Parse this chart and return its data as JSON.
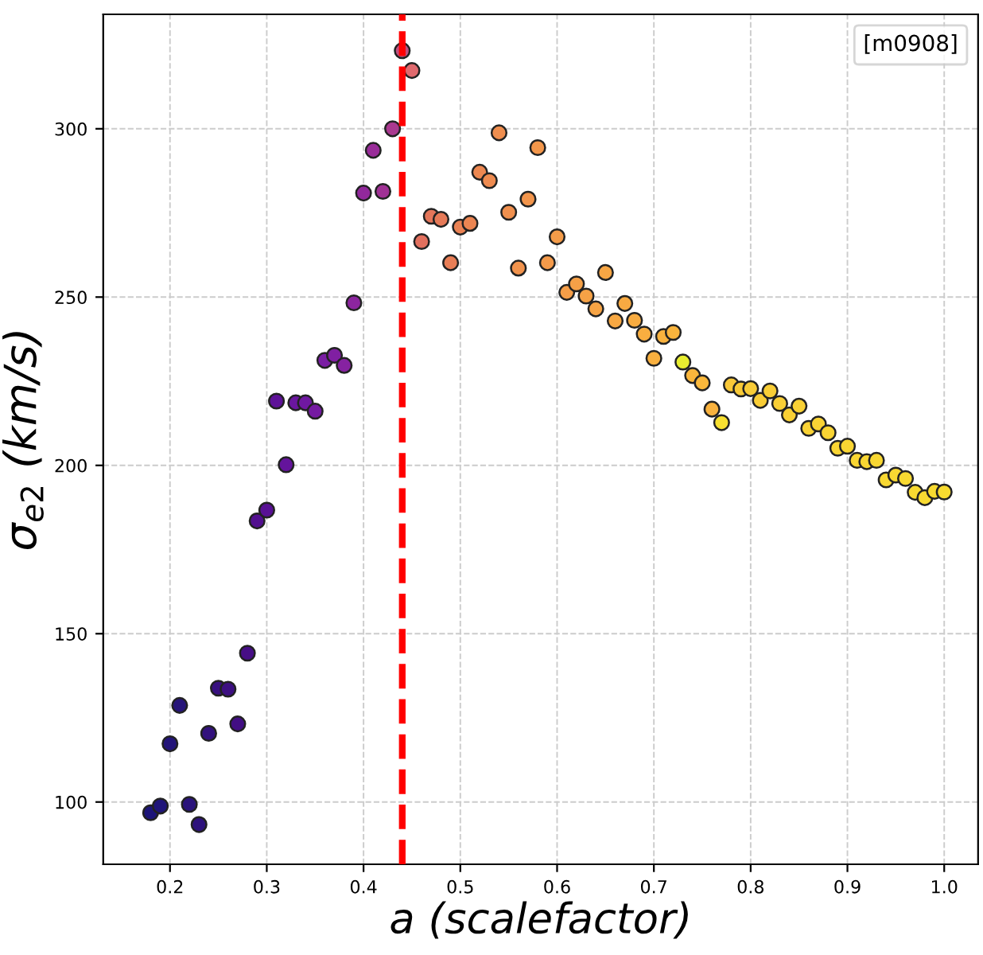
{
  "chart_data": {
    "type": "scatter",
    "xlabel": "a (scalefactor)",
    "ylabel": "σ$_{e2}$ (km/s)",
    "series": [
      {
        "name": "[m0908]",
        "x": [
          0.18,
          0.19,
          0.2,
          0.21,
          0.22,
          0.23,
          0.24,
          0.25,
          0.26,
          0.27,
          0.28,
          0.29,
          0.3,
          0.31,
          0.32,
          0.33,
          0.34,
          0.35,
          0.36,
          0.37,
          0.38,
          0.39,
          0.4,
          0.41,
          0.42,
          0.43,
          0.44,
          0.45,
          0.46,
          0.47,
          0.48,
          0.49,
          0.5,
          0.51,
          0.52,
          0.53,
          0.54,
          0.55,
          0.56,
          0.57,
          0.58,
          0.59,
          0.6,
          0.61,
          0.62,
          0.63,
          0.64,
          0.65,
          0.66,
          0.67,
          0.68,
          0.69,
          0.7,
          0.71,
          0.72,
          0.73,
          0.74,
          0.75,
          0.76,
          0.77,
          0.78,
          0.79,
          0.8,
          0.81,
          0.82,
          0.83,
          0.84,
          0.85,
          0.86,
          0.87,
          0.88,
          0.89,
          0.9,
          0.91,
          0.92,
          0.93,
          0.94,
          0.95,
          0.96,
          0.97,
          0.98,
          0.99,
          1.0
        ],
        "values": [
          96.8,
          98.8,
          117.3,
          128.7,
          99.3,
          93.3,
          120.4,
          133.8,
          133.5,
          123.2,
          144.2,
          183.5,
          186.7,
          219.1,
          200.2,
          218.6,
          218.6,
          216.1,
          231.2,
          232.7,
          229.7,
          248.3,
          280.9,
          293.6,
          281.4,
          300,
          323.2,
          317.3,
          266.5,
          274,
          273.1,
          260.2,
          270.8,
          271.9,
          287.1,
          284.6,
          298.8,
          275.2,
          258.6,
          279.1,
          294.4,
          260.2,
          267.9,
          251.4,
          253.9,
          250.3,
          246.5,
          257.3,
          242.9,
          248.1,
          243.1,
          239.0,
          231.8,
          238.3,
          239.5,
          230.7,
          226.7,
          224.5,
          216.7,
          212.7,
          223.9,
          222.7,
          222.8,
          219.3,
          222.1,
          218.4,
          215.0,
          217.6,
          211.0,
          212.3,
          209.7,
          205.1,
          205.7,
          201.5,
          201.1,
          201.5,
          195.7,
          197.1,
          196.1,
          192.0,
          190.4,
          192.3,
          192.1
        ],
        "colors": [
          "#1c1478",
          "#1f1479",
          "#231479",
          "#261479",
          "#2a137b",
          "#2e127c",
          "#33117d",
          "#38107f",
          "#3d0f81",
          "#420e83",
          "#470e86",
          "#520f8f",
          "#581094",
          "#5e1298",
          "#64149c",
          "#6a169f",
          "#6f18a1",
          "#751aa2",
          "#7a1da3",
          "#801fa2",
          "#8622a1",
          "#8c259f",
          "#92289c",
          "#992c99",
          "#a03195",
          "#aa3990",
          "#c0507f",
          "#e06a6e",
          "#e2705e",
          "#e4765a",
          "#e67a58",
          "#e87e56",
          "#ea8254",
          "#eb8552",
          "#ed8851",
          "#ee8b50",
          "#ef8e4f",
          "#f0904e",
          "#f1934d",
          "#f2954c",
          "#f3974b",
          "#f49a4a",
          "#f49c49",
          "#f59e48",
          "#f5a047",
          "#f6a246",
          "#f6a445",
          "#f7a644",
          "#f7a843",
          "#f8aa42",
          "#f8ac41",
          "#f8ae40",
          "#f9b03f",
          "#f9b23e",
          "#f9b43d",
          "#e8ee30",
          "#fab63c",
          "#fab83b",
          "#f9b23e",
          "#f8e030",
          "#f9c838",
          "#f9ca37",
          "#f9cc37",
          "#f9cd36",
          "#f9ce36",
          "#f9cf36",
          "#f9d035",
          "#f9d135",
          "#f9d235",
          "#f9d334",
          "#f9d434",
          "#f9d534",
          "#f9d533",
          "#f9d633",
          "#f9d733",
          "#f8d732",
          "#f8d832",
          "#f8d832",
          "#f8d931",
          "#f8d931",
          "#f8da31",
          "#f8da30",
          "#f8db30"
        ]
      }
    ],
    "xlim": [
      0.131,
      1.035
    ],
    "ylim": [
      81.5,
      334
    ],
    "xticks": [
      0.2,
      0.3,
      0.4,
      0.5,
      0.6,
      0.7,
      0.8,
      0.9,
      {
        "value": 1.0,
        "label": "1.0"
      }
    ],
    "yticks": [
      100,
      150,
      200,
      250,
      300
    ],
    "ref_lines": [
      {
        "axis": "x",
        "value": 0.44,
        "color": "#ff0000",
        "line_style": "dashed"
      }
    ],
    "grid": true,
    "legend": "top right",
    "marker": "circle"
  }
}
